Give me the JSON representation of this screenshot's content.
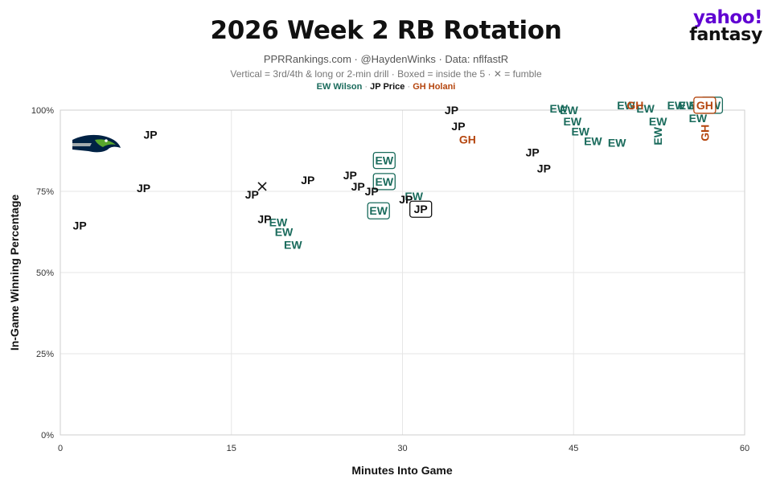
{
  "title": "2026 Week 2 RB Rotation",
  "subtitle": "PPRRankings.com · @HaydenWinks · Data: nflfastR",
  "note": "Vertical = 3rd/4th & long or 2-min drill · Boxed = inside the 5 · ✕ = fumble",
  "logo": {
    "line1": "yahoo!",
    "line2": "fantasy",
    "color": "#6001d2"
  },
  "team_logo": "seattle-seahawks-logo",
  "legend": [
    {
      "label": "EW Wilson",
      "color": "#1a6b5c"
    },
    {
      "label": "JP Price",
      "color": "#111111"
    },
    {
      "label": "GH Holani",
      "color": "#b5460f"
    }
  ],
  "chart_data": {
    "type": "scatter",
    "title": "2026 Week 2 RB Rotation",
    "xlabel": "Minutes Into Game",
    "ylabel": "In-Game Winning Percentage",
    "xlim": [
      0,
      60
    ],
    "ylim": [
      0,
      100
    ],
    "xticks": [
      "0",
      "15",
      "30",
      "45",
      "60"
    ],
    "yticks": [
      "0%",
      "25%",
      "50%",
      "75%",
      "100%"
    ],
    "grid": true,
    "legend_placement": "top-center",
    "series": [
      {
        "name": "EW Wilson",
        "label": "EW",
        "color": "#1a6b5c",
        "points": [
          {
            "x": 19.1,
            "y": 65.5
          },
          {
            "x": 19.6,
            "y": 62.5
          },
          {
            "x": 20.4,
            "y": 58.5
          },
          {
            "x": 28.4,
            "y": 84.5,
            "boxed": true
          },
          {
            "x": 28.4,
            "y": 78.0,
            "boxed": true
          },
          {
            "x": 27.9,
            "y": 69.0,
            "boxed": true
          },
          {
            "x": 31.0,
            "y": 73.5
          },
          {
            "x": 43.7,
            "y": 100.5
          },
          {
            "x": 44.6,
            "y": 100.0
          },
          {
            "x": 44.9,
            "y": 96.5
          },
          {
            "x": 45.6,
            "y": 93.5
          },
          {
            "x": 46.7,
            "y": 90.5
          },
          {
            "x": 48.8,
            "y": 90.0
          },
          {
            "x": 49.6,
            "y": 101.5
          },
          {
            "x": 51.3,
            "y": 100.5
          },
          {
            "x": 52.4,
            "y": 96.5
          },
          {
            "x": 52.4,
            "y": 92.0,
            "vertical": true
          },
          {
            "x": 54.0,
            "y": 101.5
          },
          {
            "x": 55.0,
            "y": 101.5
          },
          {
            "x": 55.9,
            "y": 101.5
          },
          {
            "x": 55.9,
            "y": 97.5
          },
          {
            "x": 57.1,
            "y": 101.5,
            "boxed": true
          }
        ]
      },
      {
        "name": "JP Price",
        "label": "JP",
        "color": "#111111",
        "points": [
          {
            "x": 1.7,
            "y": 64.5
          },
          {
            "x": 7.3,
            "y": 76.0
          },
          {
            "x": 7.9,
            "y": 92.5
          },
          {
            "x": 16.8,
            "y": 74.0
          },
          {
            "x": 17.7,
            "y": 76.5,
            "fumble": true
          },
          {
            "x": 17.9,
            "y": 66.5
          },
          {
            "x": 21.7,
            "y": 78.5
          },
          {
            "x": 25.4,
            "y": 80.0
          },
          {
            "x": 26.1,
            "y": 76.5
          },
          {
            "x": 27.3,
            "y": 75.0
          },
          {
            "x": 30.3,
            "y": 72.5
          },
          {
            "x": 31.6,
            "y": 69.5,
            "boxed": true
          },
          {
            "x": 34.3,
            "y": 100.0
          },
          {
            "x": 34.9,
            "y": 95.0
          },
          {
            "x": 41.4,
            "y": 87.0
          },
          {
            "x": 42.4,
            "y": 82.0
          }
        ]
      },
      {
        "name": "GH Holani",
        "label": "GH",
        "color": "#b5460f",
        "points": [
          {
            "x": 35.7,
            "y": 91.0
          },
          {
            "x": 50.4,
            "y": 101.5
          },
          {
            "x": 56.5,
            "y": 101.5,
            "boxed": true
          },
          {
            "x": 56.5,
            "y": 93.0,
            "vertical": true
          }
        ]
      }
    ]
  }
}
